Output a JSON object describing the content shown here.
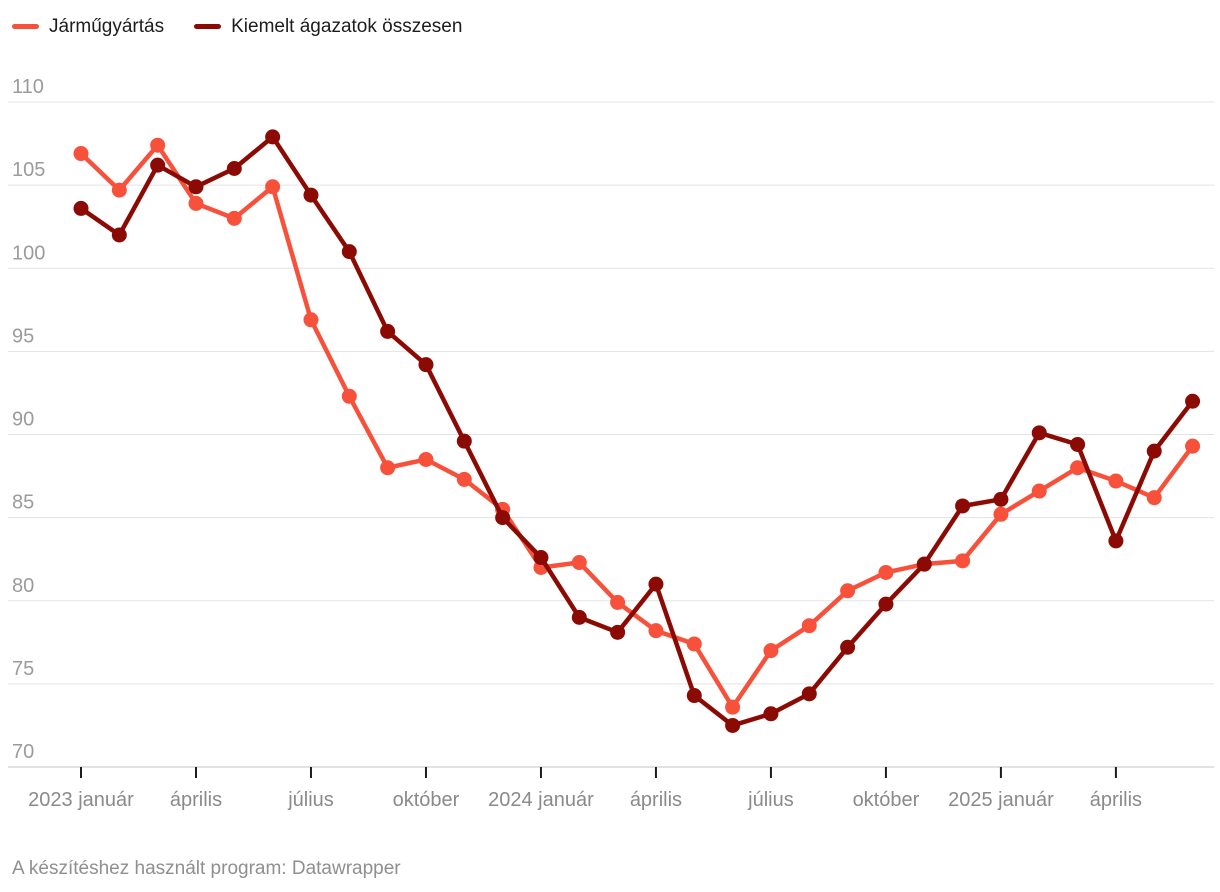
{
  "legend": {
    "items": [
      {
        "label": "Járműgyártás",
        "color": "#f7513b"
      },
      {
        "label": "Kiemelt ágazatok összesen",
        "color": "#8b0b04"
      }
    ]
  },
  "chart_data": {
    "type": "line",
    "title": "",
    "x_unit": "month",
    "x_monthly_from": "2023 január",
    "x_tick_labels": [
      "2023 január",
      "április",
      "július",
      "október",
      "2024 január",
      "április",
      "július",
      "október",
      "2025 január",
      "április"
    ],
    "x_tick_month_index": [
      0,
      3,
      6,
      9,
      12,
      15,
      18,
      21,
      24,
      27
    ],
    "ylim": [
      70,
      110
    ],
    "yticks": [
      70,
      75,
      80,
      85,
      90,
      95,
      100,
      105,
      110
    ],
    "grid": "horizontal",
    "legend_position": "top-left",
    "series": [
      {
        "name": "Járműgyártás",
        "color": "#f7513b",
        "values": [
          106.9,
          104.7,
          107.4,
          103.9,
          103.0,
          104.9,
          96.9,
          92.3,
          88.0,
          88.5,
          87.3,
          85.5,
          82.0,
          82.3,
          79.9,
          78.2,
          77.4,
          73.6,
          77.0,
          78.5,
          80.6,
          81.7,
          82.2,
          82.4,
          85.2,
          86.6,
          88.0,
          87.2,
          86.2,
          89.3
        ]
      },
      {
        "name": "Kiemelt ágazatok összesen",
        "color": "#8b0b04",
        "values": [
          103.6,
          102.0,
          106.2,
          104.9,
          106.0,
          107.9,
          104.4,
          101.0,
          96.2,
          94.2,
          89.6,
          85.0,
          82.6,
          79.0,
          78.1,
          81.0,
          74.3,
          72.5,
          73.2,
          74.4,
          77.2,
          79.8,
          82.2,
          85.7,
          86.1,
          90.1,
          89.4,
          83.6,
          89.0,
          92.0
        ]
      }
    ]
  },
  "footer": {
    "text": "A készítéshez használt program: Datawrapper"
  }
}
